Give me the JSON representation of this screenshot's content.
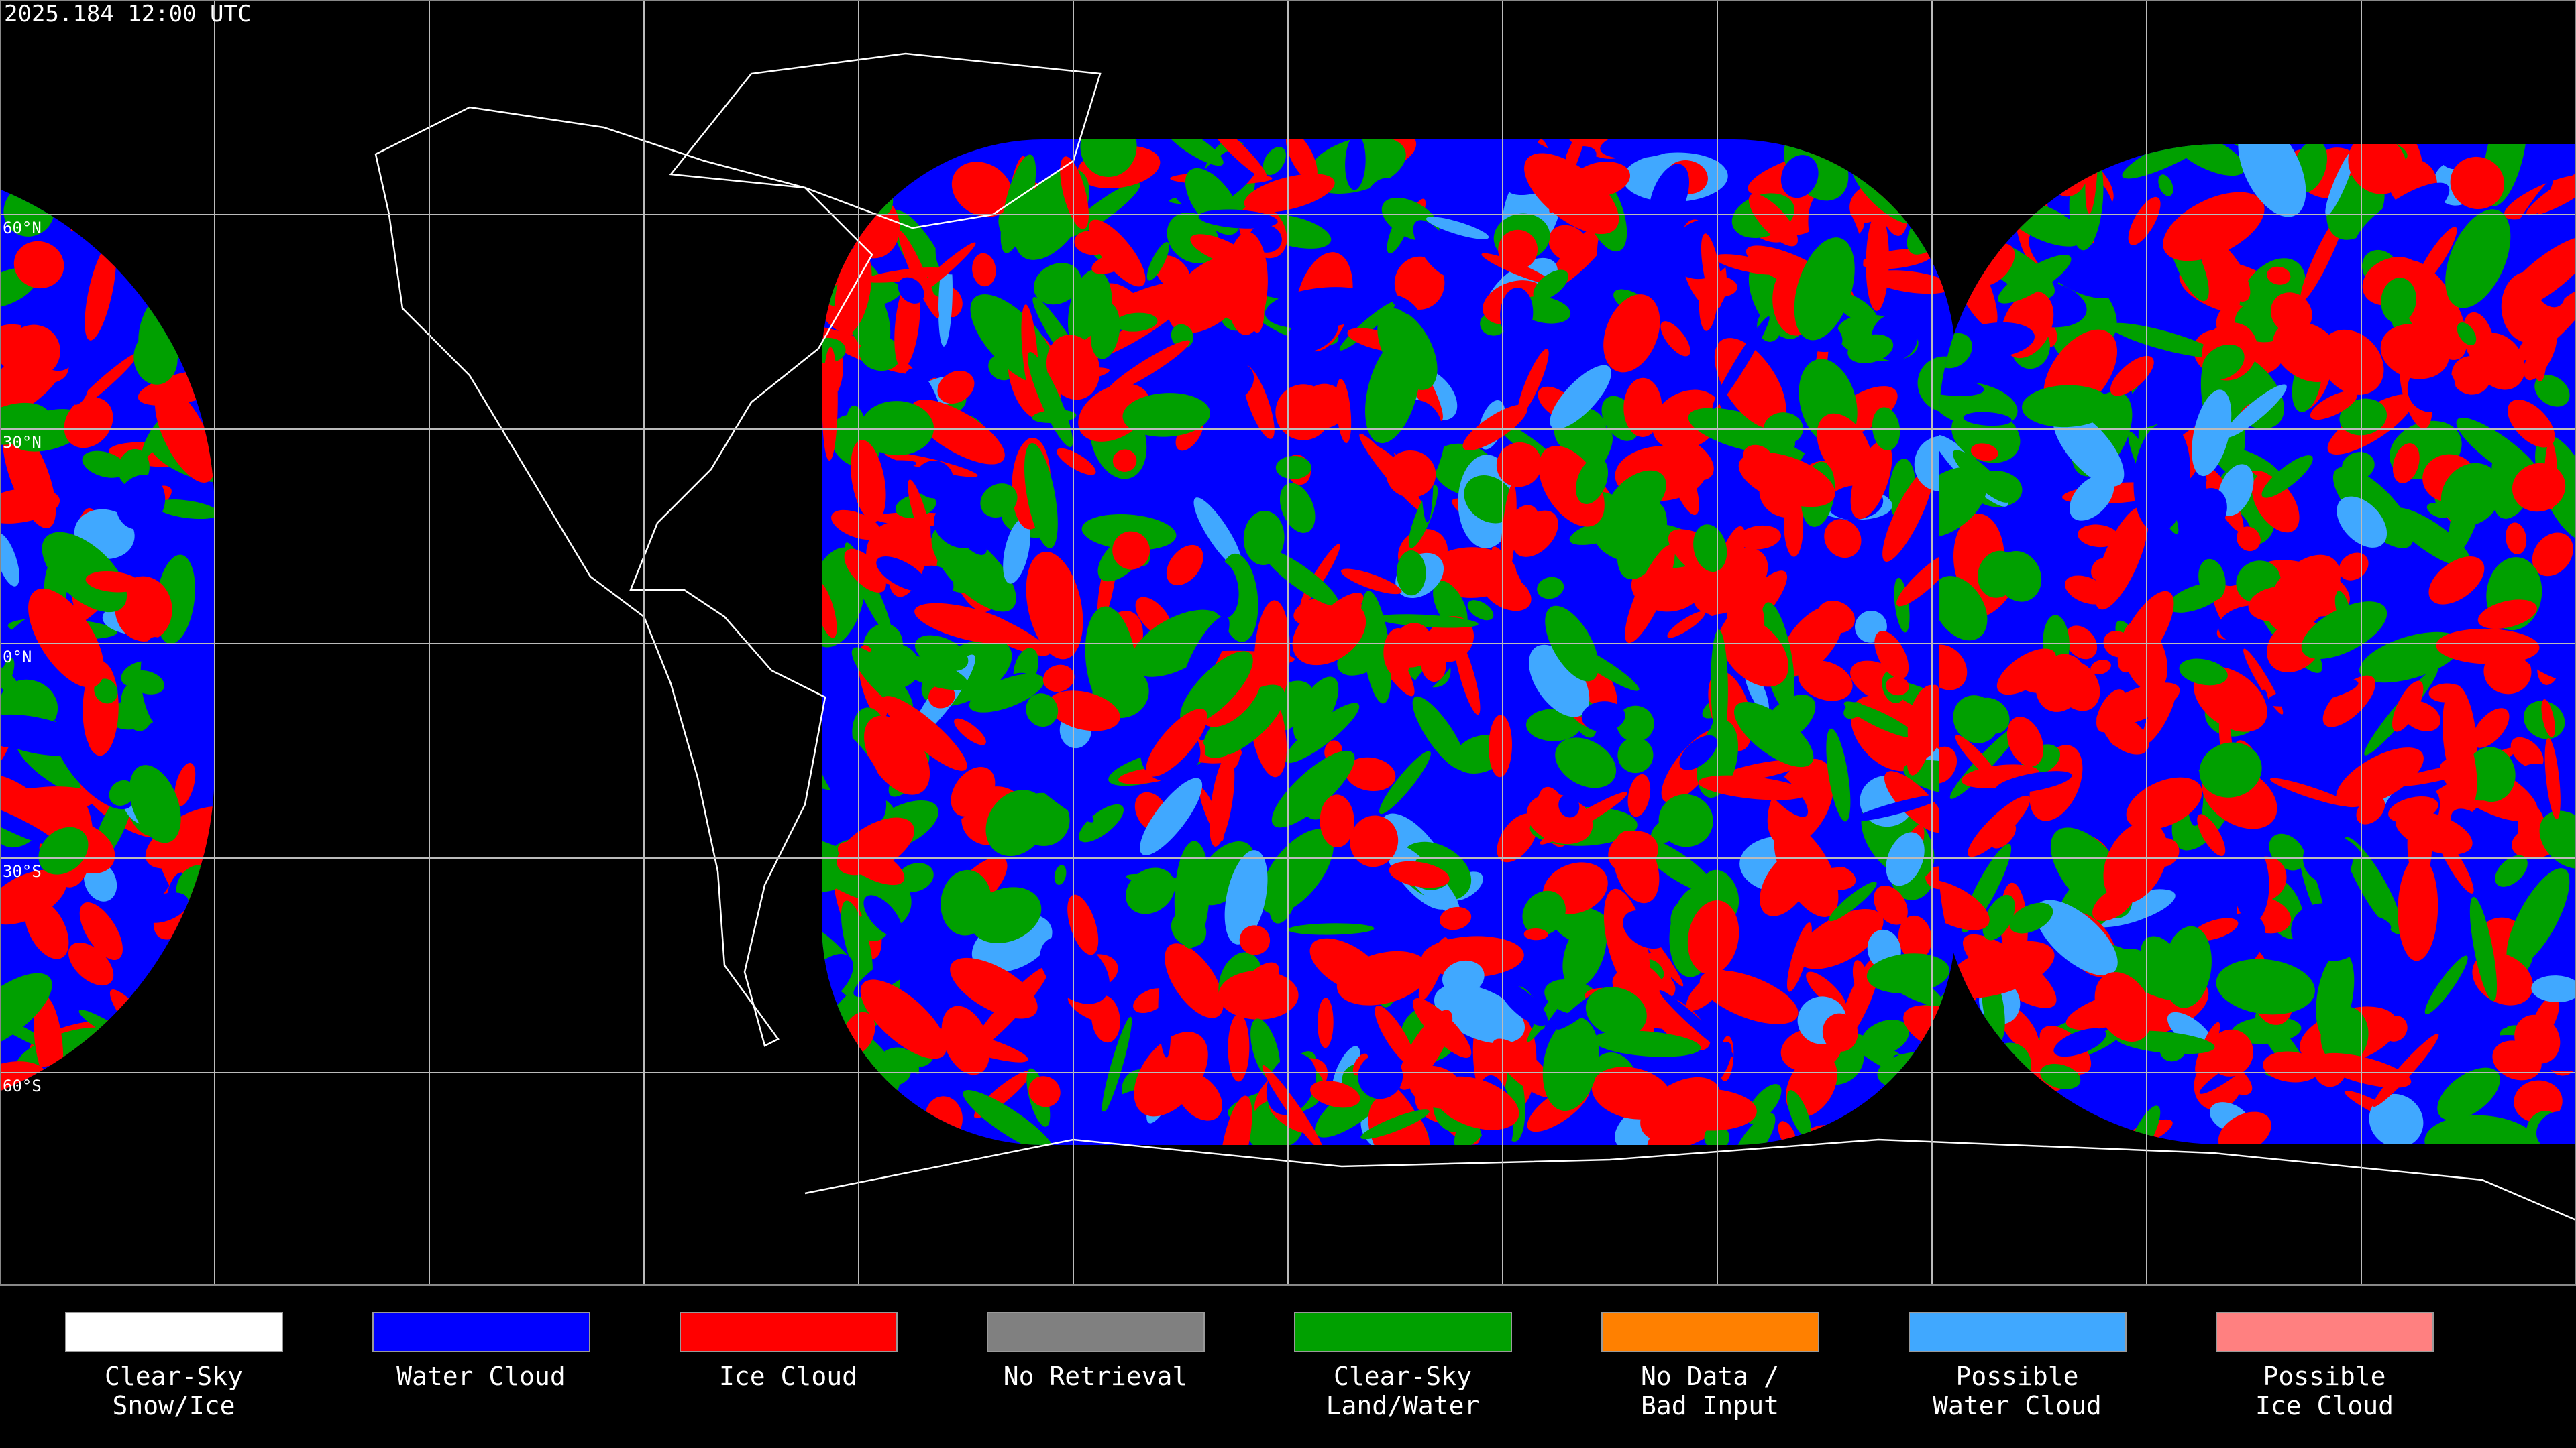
{
  "header": {
    "title": "2025.184 12:00 UTC"
  },
  "map": {
    "lat_labels": [
      "60°N",
      "30°N",
      "0°N",
      "30°S",
      "60°S"
    ]
  },
  "legend": [
    {
      "label": [
        "Clear-Sky",
        "Snow/Ice"
      ],
      "color": "#ffffff"
    },
    {
      "label": [
        "Water Cloud"
      ],
      "color": "#0000ff"
    },
    {
      "label": [
        "Ice Cloud"
      ],
      "color": "#ff0000"
    },
    {
      "label": [
        "No Retrieval"
      ],
      "color": "#808080"
    },
    {
      "label": [
        "Clear-Sky",
        "Land/Water"
      ],
      "color": "#00a000"
    },
    {
      "label": [
        "No Data /",
        "Bad Input"
      ],
      "color": "#ff8000"
    },
    {
      "label": [
        "Possible",
        "Water Cloud"
      ],
      "color": "#40a8ff"
    },
    {
      "label": [
        "Possible",
        "Ice Cloud"
      ],
      "color": "#ff8080"
    }
  ]
}
